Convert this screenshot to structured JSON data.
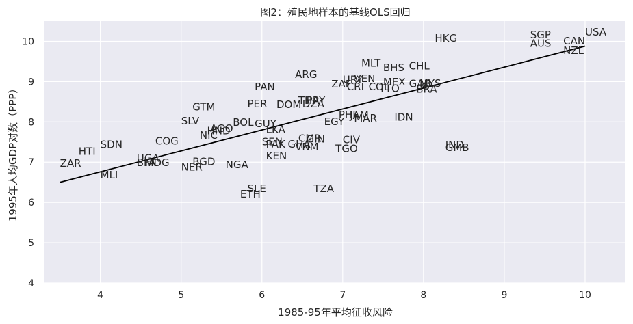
{
  "chart_data": {
    "type": "scatter",
    "title": "图2：殖民地样本的基线OLS回归",
    "xlabel": "1985-95年平均征收风险",
    "ylabel": "1995年人均GDP对数（PPP）",
    "xlim": [
      3.3,
      10.5
    ],
    "ylim": [
      4,
      10.5
    ],
    "xticks": [
      4,
      5,
      6,
      7,
      8,
      9,
      10
    ],
    "yticks": [
      4,
      5,
      6,
      7,
      8,
      9,
      10
    ],
    "grid": true,
    "background": "#eaeaf2",
    "fit_line": {
      "x": [
        3.5,
        10.0
      ],
      "y": [
        6.5,
        9.88
      ]
    },
    "points": [
      {
        "label": "USA",
        "x": 10.0,
        "y": 10.22
      },
      {
        "label": "SGP",
        "x": 9.32,
        "y": 10.15
      },
      {
        "label": "CAN",
        "x": 9.73,
        "y": 10.0
      },
      {
        "label": "AUS",
        "x": 9.32,
        "y": 9.94
      },
      {
        "label": "NZL",
        "x": 9.73,
        "y": 9.76
      },
      {
        "label": "HKG",
        "x": 8.14,
        "y": 10.07
      },
      {
        "label": "MLT",
        "x": 7.23,
        "y": 9.45
      },
      {
        "label": "BHS",
        "x": 7.5,
        "y": 9.34
      },
      {
        "label": "CHL",
        "x": 7.82,
        "y": 9.38
      },
      {
        "label": "ARG",
        "x": 6.41,
        "y": 9.17
      },
      {
        "label": "URY",
        "x": 7.0,
        "y": 9.04
      },
      {
        "label": "VEN",
        "x": 7.14,
        "y": 9.07
      },
      {
        "label": "MEX",
        "x": 7.5,
        "y": 8.98
      },
      {
        "label": "GAB",
        "x": 7.82,
        "y": 8.94
      },
      {
        "label": "MYS",
        "x": 7.95,
        "y": 8.95
      },
      {
        "label": "ZAF",
        "x": 6.86,
        "y": 8.93
      },
      {
        "label": "CRI",
        "x": 7.05,
        "y": 8.86
      },
      {
        "label": "COL",
        "x": 7.32,
        "y": 8.86
      },
      {
        "label": "TTO",
        "x": 7.45,
        "y": 8.82
      },
      {
        "label": "BRA",
        "x": 7.91,
        "y": 8.8
      },
      {
        "label": "PAN",
        "x": 5.91,
        "y": 8.86
      },
      {
        "label": "THA",
        "x": 6.45,
        "y": 8.52
      },
      {
        "label": "PRY",
        "x": 6.55,
        "y": 8.52
      },
      {
        "label": "DOM",
        "x": 6.18,
        "y": 8.42
      },
      {
        "label": "DZA",
        "x": 6.5,
        "y": 8.44
      },
      {
        "label": "PER",
        "x": 5.82,
        "y": 8.44
      },
      {
        "label": "GTM",
        "x": 5.14,
        "y": 8.36
      },
      {
        "label": "PHL",
        "x": 6.95,
        "y": 8.17
      },
      {
        "label": "JAM",
        "x": 7.09,
        "y": 8.15
      },
      {
        "label": "MAR",
        "x": 7.14,
        "y": 8.08
      },
      {
        "label": "EGY",
        "x": 6.77,
        "y": 8.0
      },
      {
        "label": "IDN",
        "x": 7.64,
        "y": 8.11
      },
      {
        "label": "SLV",
        "x": 5.0,
        "y": 8.01
      },
      {
        "label": "BOL",
        "x": 5.64,
        "y": 7.98
      },
      {
        "label": "GUY",
        "x": 5.91,
        "y": 7.95
      },
      {
        "label": "AGO",
        "x": 5.36,
        "y": 7.83
      },
      {
        "label": "HND",
        "x": 5.32,
        "y": 7.77
      },
      {
        "label": "LKA",
        "x": 6.05,
        "y": 7.8
      },
      {
        "label": "NIC",
        "x": 5.23,
        "y": 7.66
      },
      {
        "label": "COG",
        "x": 4.68,
        "y": 7.51
      },
      {
        "label": "SEN",
        "x": 6.0,
        "y": 7.5
      },
      {
        "label": "PAK",
        "x": 6.05,
        "y": 7.44
      },
      {
        "label": "GHA",
        "x": 6.32,
        "y": 7.44
      },
      {
        "label": "CMR",
        "x": 6.45,
        "y": 7.58
      },
      {
        "label": "GIN",
        "x": 6.55,
        "y": 7.56
      },
      {
        "label": "VNM",
        "x": 6.41,
        "y": 7.37
      },
      {
        "label": "CIV",
        "x": 7.0,
        "y": 7.55
      },
      {
        "label": "TGO",
        "x": 6.91,
        "y": 7.33
      },
      {
        "label": "KEN",
        "x": 6.05,
        "y": 7.15
      },
      {
        "label": "SDN",
        "x": 4.0,
        "y": 7.43
      },
      {
        "label": "HTI",
        "x": 3.73,
        "y": 7.26
      },
      {
        "label": "ZAR",
        "x": 3.5,
        "y": 6.96
      },
      {
        "label": "UGA",
        "x": 4.45,
        "y": 7.09
      },
      {
        "label": "BFA",
        "x": 4.45,
        "y": 6.98
      },
      {
        "label": "MDG",
        "x": 4.55,
        "y": 6.98
      },
      {
        "label": "MLI",
        "x": 4.0,
        "y": 6.67
      },
      {
        "label": "BGD",
        "x": 5.14,
        "y": 7.0
      },
      {
        "label": "NER",
        "x": 5.0,
        "y": 6.87
      },
      {
        "label": "NGA",
        "x": 5.55,
        "y": 6.93
      },
      {
        "label": "IND",
        "x": 8.27,
        "y": 7.42
      },
      {
        "label": "GMB",
        "x": 8.27,
        "y": 7.35
      },
      {
        "label": "SLE",
        "x": 5.82,
        "y": 6.33
      },
      {
        "label": "TZA",
        "x": 6.64,
        "y": 6.33
      },
      {
        "label": "ETH",
        "x": 5.73,
        "y": 6.2
      }
    ]
  }
}
